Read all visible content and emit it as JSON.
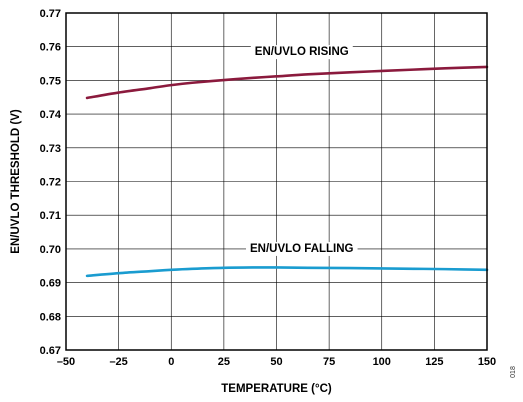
{
  "chart_data": {
    "type": "line",
    "xlabel": "TEMPERATURE (°C)",
    "ylabel": "EN/UVLO THRESHOLD (V)",
    "xlim": [
      -50,
      150
    ],
    "ylim": [
      0.67,
      0.77
    ],
    "x_ticks": [
      "–50",
      "–25",
      "0",
      "25",
      "50",
      "75",
      "100",
      "125",
      "150"
    ],
    "y_ticks": [
      "0.67",
      "0.68",
      "0.69",
      "0.70",
      "0.71",
      "0.72",
      "0.73",
      "0.74",
      "0.75",
      "0.76",
      "0.77"
    ],
    "grid": true,
    "series": [
      {
        "name": "EN/UVLO RISING",
        "color": "#8b1a3d",
        "x": [
          -40,
          -25,
          -10,
          0,
          10,
          25,
          40,
          50,
          65,
          85,
          100,
          115,
          130,
          150
        ],
        "y": [
          0.7448,
          0.7464,
          0.7477,
          0.7486,
          0.7493,
          0.7501,
          0.7508,
          0.7512,
          0.7518,
          0.7524,
          0.7528,
          0.7532,
          0.7536,
          0.754
        ]
      },
      {
        "name": "EN/UVLO FALLING",
        "color": "#1a9cd0",
        "x": [
          -40,
          -25,
          -10,
          0,
          10,
          25,
          40,
          50,
          65,
          85,
          100,
          115,
          130,
          150
        ],
        "y": [
          0.692,
          0.6928,
          0.6934,
          0.6938,
          0.6941,
          0.6944,
          0.6945,
          0.6945,
          0.6944,
          0.6943,
          0.6942,
          0.6941,
          0.694,
          0.6938
        ]
      }
    ],
    "annotations": [
      "EN/UVLO RISING",
      "EN/UVLO FALLING"
    ]
  },
  "figure_id": "018"
}
